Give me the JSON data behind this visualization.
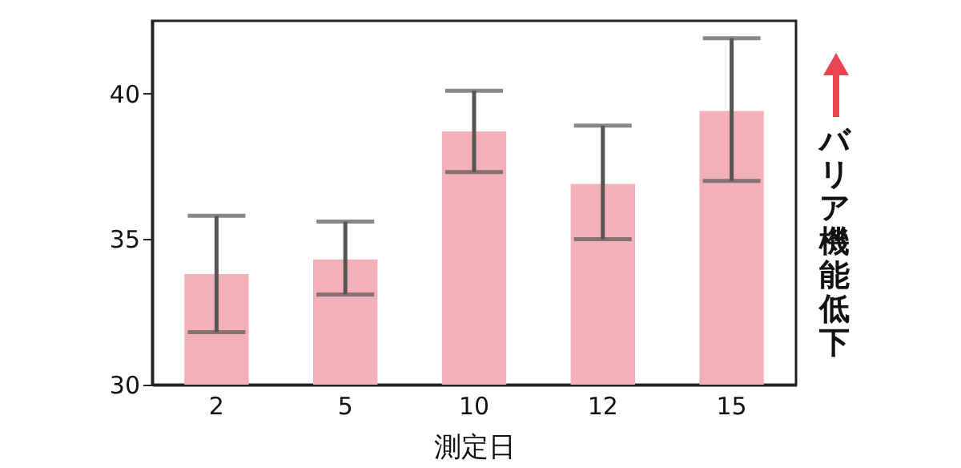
{
  "chart_data": {
    "type": "bar",
    "xlabel": "測定日",
    "categories": [
      "2",
      "5",
      "10",
      "12",
      "15"
    ],
    "series": [
      {
        "color": "#f4b0b8",
        "values": [
          33.8,
          34.3,
          38.7,
          36.9,
          39.4
        ],
        "errors": [
          [
            31.8,
            35.8
          ],
          [
            33.1,
            35.6
          ],
          [
            37.3,
            40.1
          ],
          [
            35.0,
            38.9
          ],
          [
            37.0,
            41.9
          ]
        ]
      }
    ],
    "ylim": [
      30,
      42.5
    ],
    "yticks": [
      30,
      35,
      40
    ],
    "annotations": [
      "バリア機能低下"
    ]
  }
}
